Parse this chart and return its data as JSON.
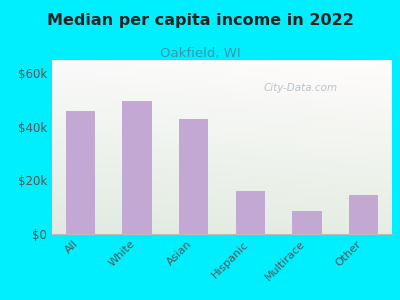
{
  "title": "Median per capita income in 2022",
  "subtitle": "Oakfield, WI",
  "categories": [
    "All",
    "White",
    "Asian",
    "Hispanic",
    "Multirace",
    "Other"
  ],
  "values": [
    46000,
    49500,
    43000,
    16000,
    8500,
    14500
  ],
  "bar_color": "#c4a8d4",
  "background_outer": "#00efff",
  "title_color": "#222222",
  "subtitle_color": "#3399aa",
  "tick_color": "#555555",
  "ylabel_ticks": [
    "$0",
    "$20k",
    "$40k",
    "$60k"
  ],
  "ylabel_values": [
    0,
    20000,
    40000,
    60000
  ],
  "ylim": [
    0,
    65000
  ],
  "watermark": "City-Data.com"
}
